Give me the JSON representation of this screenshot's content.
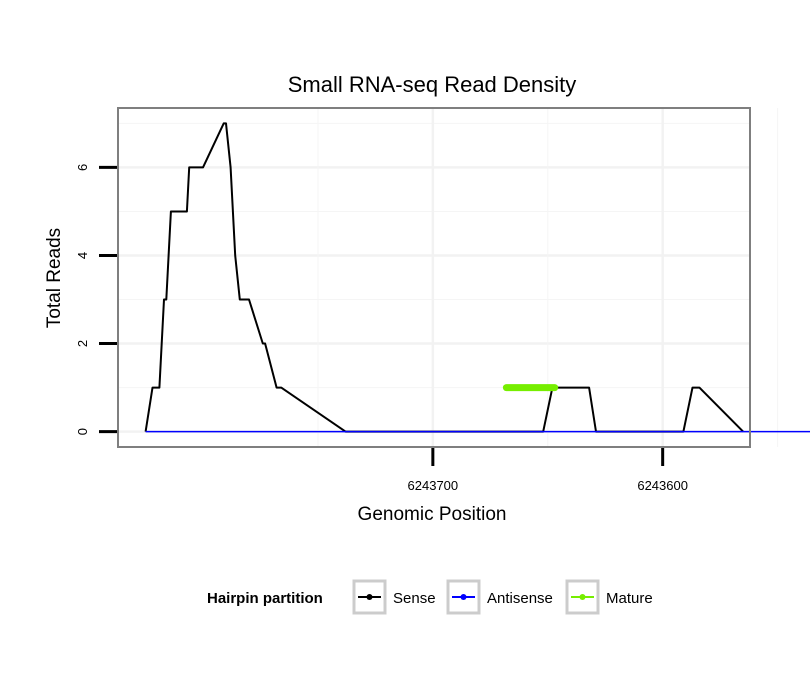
{
  "chart_data": {
    "type": "line",
    "title": "Small RNA-seq Read Density",
    "xlabel": "Genomic Position",
    "ylabel": "Total Reads",
    "xlim": [
      6243837,
      6243562
    ],
    "ylim": [
      -0.35,
      7.35
    ],
    "x_reversed": true,
    "x_ticks": [
      6243700,
      6243600
    ],
    "x_tick_labels": [
      "6243700",
      "6243600"
    ],
    "y_ticks": [
      0,
      2,
      4,
      6
    ],
    "y_tick_labels": [
      "0",
      "2",
      "4",
      "6"
    ],
    "grid": true,
    "legend_position": "bottom",
    "legend": {
      "title": "Hairpin partition",
      "entries": [
        "Sense",
        "Antisense",
        "Mature"
      ]
    },
    "series": [
      {
        "name": "Sense",
        "color": "#000000",
        "x": [
          6243825,
          6243822,
          6243819,
          6243817,
          6243816,
          6243814,
          6243807,
          6243806,
          6243800,
          6243791,
          6243790,
          6243788,
          6243786,
          6243784,
          6243780,
          6243774,
          6243773,
          6243768,
          6243766,
          6243738,
          6243734,
          6243712,
          6243686,
          6243659,
          6243652,
          6243648,
          6243645,
          6243632,
          6243629,
          6243610,
          6243591,
          6243587,
          6243584,
          6243565
        ],
        "y": [
          0,
          1,
          1,
          3,
          3,
          5,
          5,
          6,
          6,
          7,
          7,
          6,
          4,
          3,
          3,
          2,
          2,
          1,
          1,
          0,
          0,
          0,
          0,
          0,
          0,
          1,
          1,
          1,
          0,
          0,
          0,
          1,
          1,
          0
        ]
      },
      {
        "name": "Antisense",
        "color": "#0000ff",
        "x": [
          6243825,
          6243779,
          6243664,
          6243643,
          6243560,
          6243533
        ],
        "y": [
          0,
          0,
          0,
          0,
          0,
          0
        ]
      },
      {
        "name": "Mature",
        "color": "#76ee00",
        "x": [
          6243668,
          6243647
        ],
        "y": [
          1,
          1
        ]
      }
    ]
  }
}
